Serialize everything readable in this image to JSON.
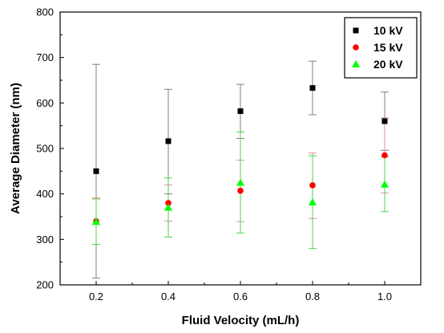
{
  "chart_data": {
    "type": "scatter",
    "xlabel": "Fluid Velocity (mL/h)",
    "ylabel": "Average Diameter (nm)",
    "xlim": [
      0.1,
      1.1
    ],
    "ylim": [
      200,
      800
    ],
    "x_ticks": [
      0.2,
      0.4,
      0.6,
      0.8,
      1.0
    ],
    "x_tick_labels": [
      "0.2",
      "0.4",
      "0.6",
      "0.8",
      "1.0"
    ],
    "y_ticks": [
      200,
      300,
      400,
      500,
      600,
      700,
      800
    ],
    "y_tick_labels": [
      "200",
      "300",
      "400",
      "500",
      "600",
      "700",
      "800"
    ],
    "grid": false,
    "legend_position": "top-right",
    "series": [
      {
        "name": "10 kV",
        "marker": "square",
        "color": "#000000",
        "error_color": "#808080",
        "x": [
          0.2,
          0.4,
          0.6,
          0.8,
          1.0
        ],
        "y": [
          450,
          516,
          582,
          633,
          560
        ],
        "err_low": [
          215,
          400,
          522,
          574,
          496
        ],
        "err_high": [
          685,
          630,
          641,
          692,
          624
        ]
      },
      {
        "name": "15 kV",
        "marker": "circle",
        "color": "#ff0000",
        "error_color": "#e09090",
        "x": [
          0.2,
          0.4,
          0.6,
          0.8,
          1.0
        ],
        "y": [
          340,
          380,
          407,
          419,
          485
        ],
        "err_low": [
          289,
          340,
          339,
          346,
          402
        ],
        "err_high": [
          391,
          420,
          474,
          490,
          567
        ]
      },
      {
        "name": "20 kV",
        "marker": "triangle",
        "color": "#00ff00",
        "error_color": "#50d050",
        "x": [
          0.2,
          0.4,
          0.6,
          0.8,
          1.0
        ],
        "y": [
          339,
          370,
          425,
          382,
          421
        ],
        "err_low": [
          289,
          305,
          314,
          280,
          361
        ],
        "err_high": [
          389,
          435,
          536,
          484,
          481
        ]
      }
    ]
  }
}
